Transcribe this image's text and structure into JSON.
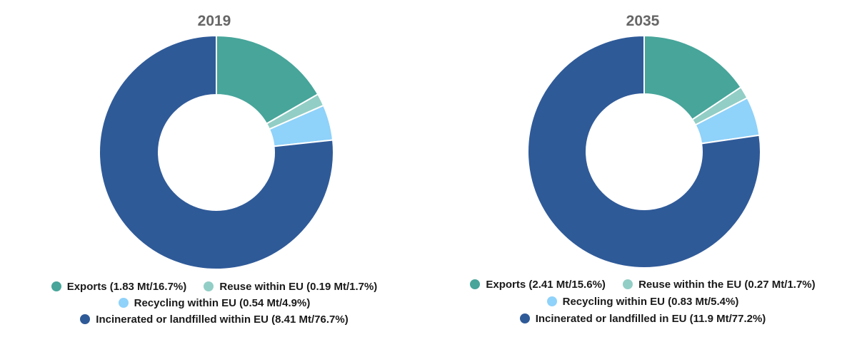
{
  "colors": {
    "exports": "#47a59a",
    "reuse": "#92cec5",
    "recycling": "#8fd2fa",
    "incinerated": "#2f5a98"
  },
  "chart_data": [
    {
      "type": "pie",
      "title": "2019",
      "slices": [
        {
          "key": "exports",
          "label": "Exports (1.83 Mt/16.7%)",
          "value": 16.7,
          "color": "#47a59a"
        },
        {
          "key": "reuse",
          "label": "Reuse within EU (0.19 Mt/1.7%)",
          "value": 1.7,
          "color": "#92cec5"
        },
        {
          "key": "recycling",
          "label": "Recycling within EU (0.54 Mt/4.9%)",
          "value": 4.9,
          "color": "#8fd2fa"
        },
        {
          "key": "incinerated",
          "label": "Incinerated or landfilled within EU (8.41 Mt/76.7%)",
          "value": 76.7,
          "color": "#2f5a98"
        }
      ]
    },
    {
      "type": "pie",
      "title": "2035",
      "slices": [
        {
          "key": "exports",
          "label": "Exports (2.41 Mt/15.6%)",
          "value": 15.6,
          "color": "#47a59a"
        },
        {
          "key": "reuse",
          "label": "Reuse within the EU (0.27 Mt/1.7%)",
          "value": 1.7,
          "color": "#92cec5"
        },
        {
          "key": "recycling",
          "label": "Recycling within EU (0.83 Mt/5.4%)",
          "value": 5.4,
          "color": "#8fd2fa"
        },
        {
          "key": "incinerated",
          "label": "Incinerated or landfilled in EU (11.9 Mt/77.2%)",
          "value": 77.2,
          "color": "#2f5a98"
        }
      ]
    }
  ]
}
